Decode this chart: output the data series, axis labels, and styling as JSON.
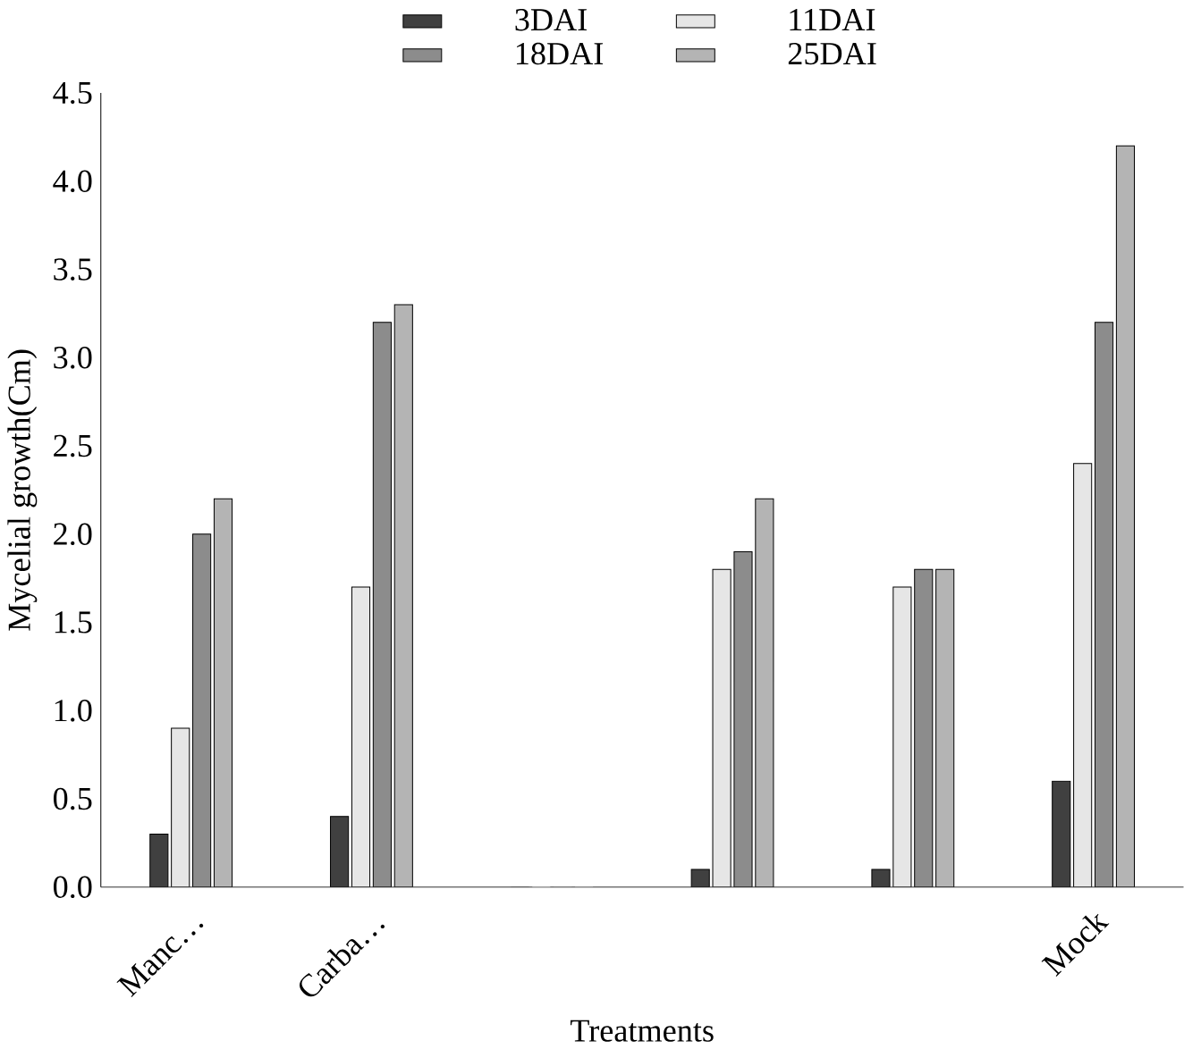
{
  "chart_data": {
    "type": "bar",
    "xlabel": "Treatments",
    "ylabel": "Mycelial growth(Cm)",
    "categories": [
      "Manc…",
      "Carba…",
      null,
      null,
      null,
      "Mock"
    ],
    "series": [
      {
        "name": "3DAI",
        "color": "#404040",
        "values": [
          0.3,
          0.4,
          0,
          0.1,
          0.1,
          0.6
        ]
      },
      {
        "name": "11DAI",
        "color": "#e6e6e6",
        "values": [
          0.9,
          1.7,
          0,
          1.8,
          1.7,
          2.4
        ]
      },
      {
        "name": "18DAI",
        "color": "#8c8c8c",
        "values": [
          2.0,
          3.2,
          0,
          1.9,
          1.8,
          3.2
        ]
      },
      {
        "name": "25DAI",
        "color": "#b4b4b4",
        "values": [
          2.2,
          3.3,
          0,
          2.2,
          1.8,
          4.2
        ]
      }
    ],
    "ylim": [
      0,
      4.5
    ],
    "yticks": [
      {
        "value": 0,
        "label": "0.0"
      },
      {
        "value": 0.5,
        "label": "0.5"
      },
      {
        "value": 1,
        "label": "1.0"
      },
      {
        "value": 1.5,
        "label": "1.5"
      },
      {
        "value": 2,
        "label": "2.0"
      },
      {
        "value": 2.5,
        "label": "2.5"
      },
      {
        "value": 3,
        "label": "3.0"
      },
      {
        "value": 3.5,
        "label": "3.5"
      },
      {
        "value": 4,
        "label": "4.0"
      },
      {
        "value": 4.5,
        "label": "4.5"
      }
    ],
    "legend": "top",
    "grid": false
  }
}
